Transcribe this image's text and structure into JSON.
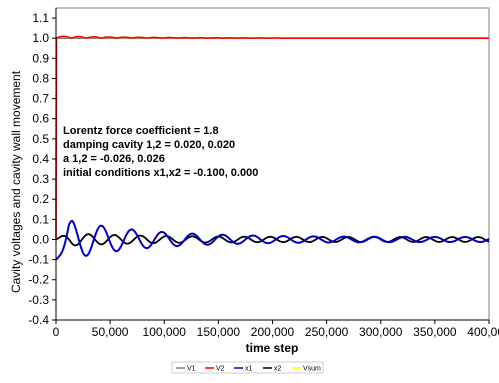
{
  "chart_data": {
    "type": "line",
    "xlabel": "time step",
    "ylabel": "Cavity voltages and cavity wall movement",
    "xlim": [
      0,
      400000
    ],
    "ylim": [
      -0.4,
      1.15
    ],
    "x_ticks": [
      0,
      50000,
      100000,
      150000,
      200000,
      250000,
      300000,
      350000,
      400000
    ],
    "x_tick_labels": [
      "0",
      "50,000",
      "100,000",
      "150,000",
      "200,000",
      "250,000",
      "300,000",
      "350,000",
      "400,000"
    ],
    "y_ticks": [
      -0.4,
      -0.3,
      -0.2,
      -0.1,
      0.0,
      0.1,
      0.2,
      0.3,
      0.4,
      0.5,
      0.6,
      0.7,
      0.8,
      0.9,
      1.0,
      1.1
    ],
    "y_tick_labels": [
      "-0.4",
      "-0.3",
      "-0.2",
      "-0.1",
      "0.0",
      "0.1",
      "0.2",
      "0.3",
      "0.4",
      "0.5",
      "0.6",
      "0.7",
      "0.8",
      "0.9",
      "1.0",
      "1.1"
    ],
    "grid": false,
    "legend_position": "bottom",
    "annotations": [
      "Lorentz force coefficient = 1.8",
      "damping cavity 1,2 =   0.020,   0.020",
      "a 1,2 =  -0.026,   0.026",
      "initial conditions x1,x2 =  -0.100,   0.000"
    ],
    "series": [
      {
        "name": "V1",
        "color": "#808080",
        "description_values": {
          "start": 0.0,
          "rise_to": 1.0,
          "steady": 1.0
        }
      },
      {
        "name": "V2",
        "color": "#ff0000",
        "description_values": {
          "start": 0.0,
          "rise_to": 1.0,
          "ripple_amplitude": 0.01,
          "ripple_until": 210000
        }
      },
      {
        "name": "x1",
        "color": "#0000cc",
        "description_values": {
          "start": -0.1,
          "peak_amplitude": 0.095,
          "period": 28000,
          "final_amplitude": 0.012
        }
      },
      {
        "name": "x2",
        "color": "#000000",
        "description_values": {
          "start": 0.0,
          "peak_amplitude": 0.03,
          "period": 24000,
          "final_amplitude": 0.012
        }
      },
      {
        "name": "Vsum",
        "color": "#ffff00",
        "description_values": {
          "start": 0.0,
          "rise_to": 1.0,
          "ripple_amplitude": 0.008,
          "ripple_until": 210000
        }
      }
    ]
  }
}
